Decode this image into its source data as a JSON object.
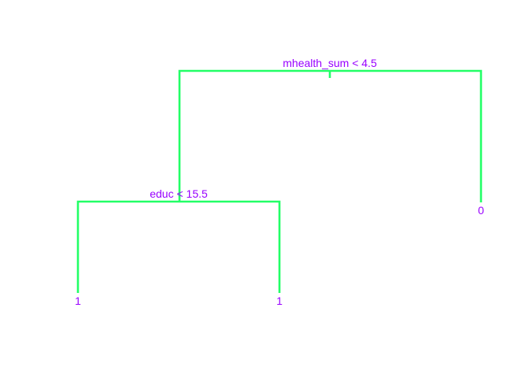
{
  "colors": {
    "branch": "#22ff66",
    "text": "#9900ff",
    "background": "#ffffff"
  },
  "tree": {
    "root": {
      "split": "mhealth_sum < 4.5",
      "left": {
        "split": "educ < 15.5",
        "left": {
          "leaf": "1"
        },
        "right": {
          "leaf": "1"
        }
      },
      "right": {
        "leaf": "0"
      }
    }
  }
}
